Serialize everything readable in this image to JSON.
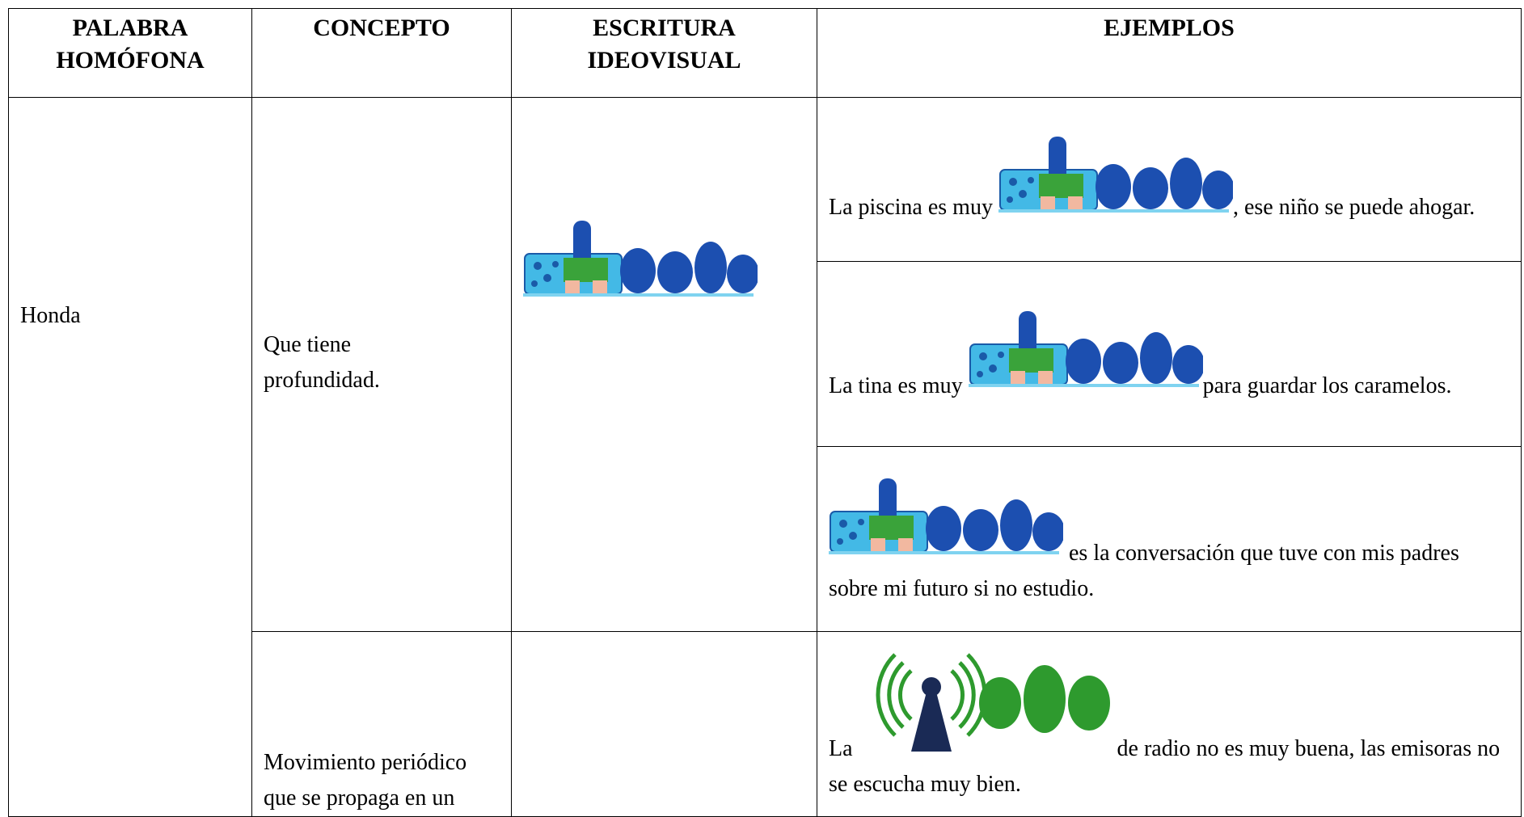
{
  "table": {
    "header": [
      "PALABRA HOMÓFONA",
      "CONCEPTO",
      "ESCRITURA IDEOVISUAL",
      "EJEMPLOS"
    ],
    "word": "Honda",
    "senses": [
      {
        "concept": "Que tiene profundidad.",
        "examples": [
          {
            "before": "La piscina es muy",
            "after": ", ese niño se puede ahogar."
          },
          {
            "before": "La tina es muy",
            "after": "para guardar los caramelos."
          },
          {
            "after": "es la conversación que tuve con mis padres sobre mi futuro si no estudio."
          }
        ]
      },
      {
        "concept": "Movimiento periódico que se propaga en un",
        "examples": [
          {
            "before": "La",
            "after": "de radio no es muy buena, las emisoras no se escucha muy bien."
          }
        ]
      }
    ]
  }
}
